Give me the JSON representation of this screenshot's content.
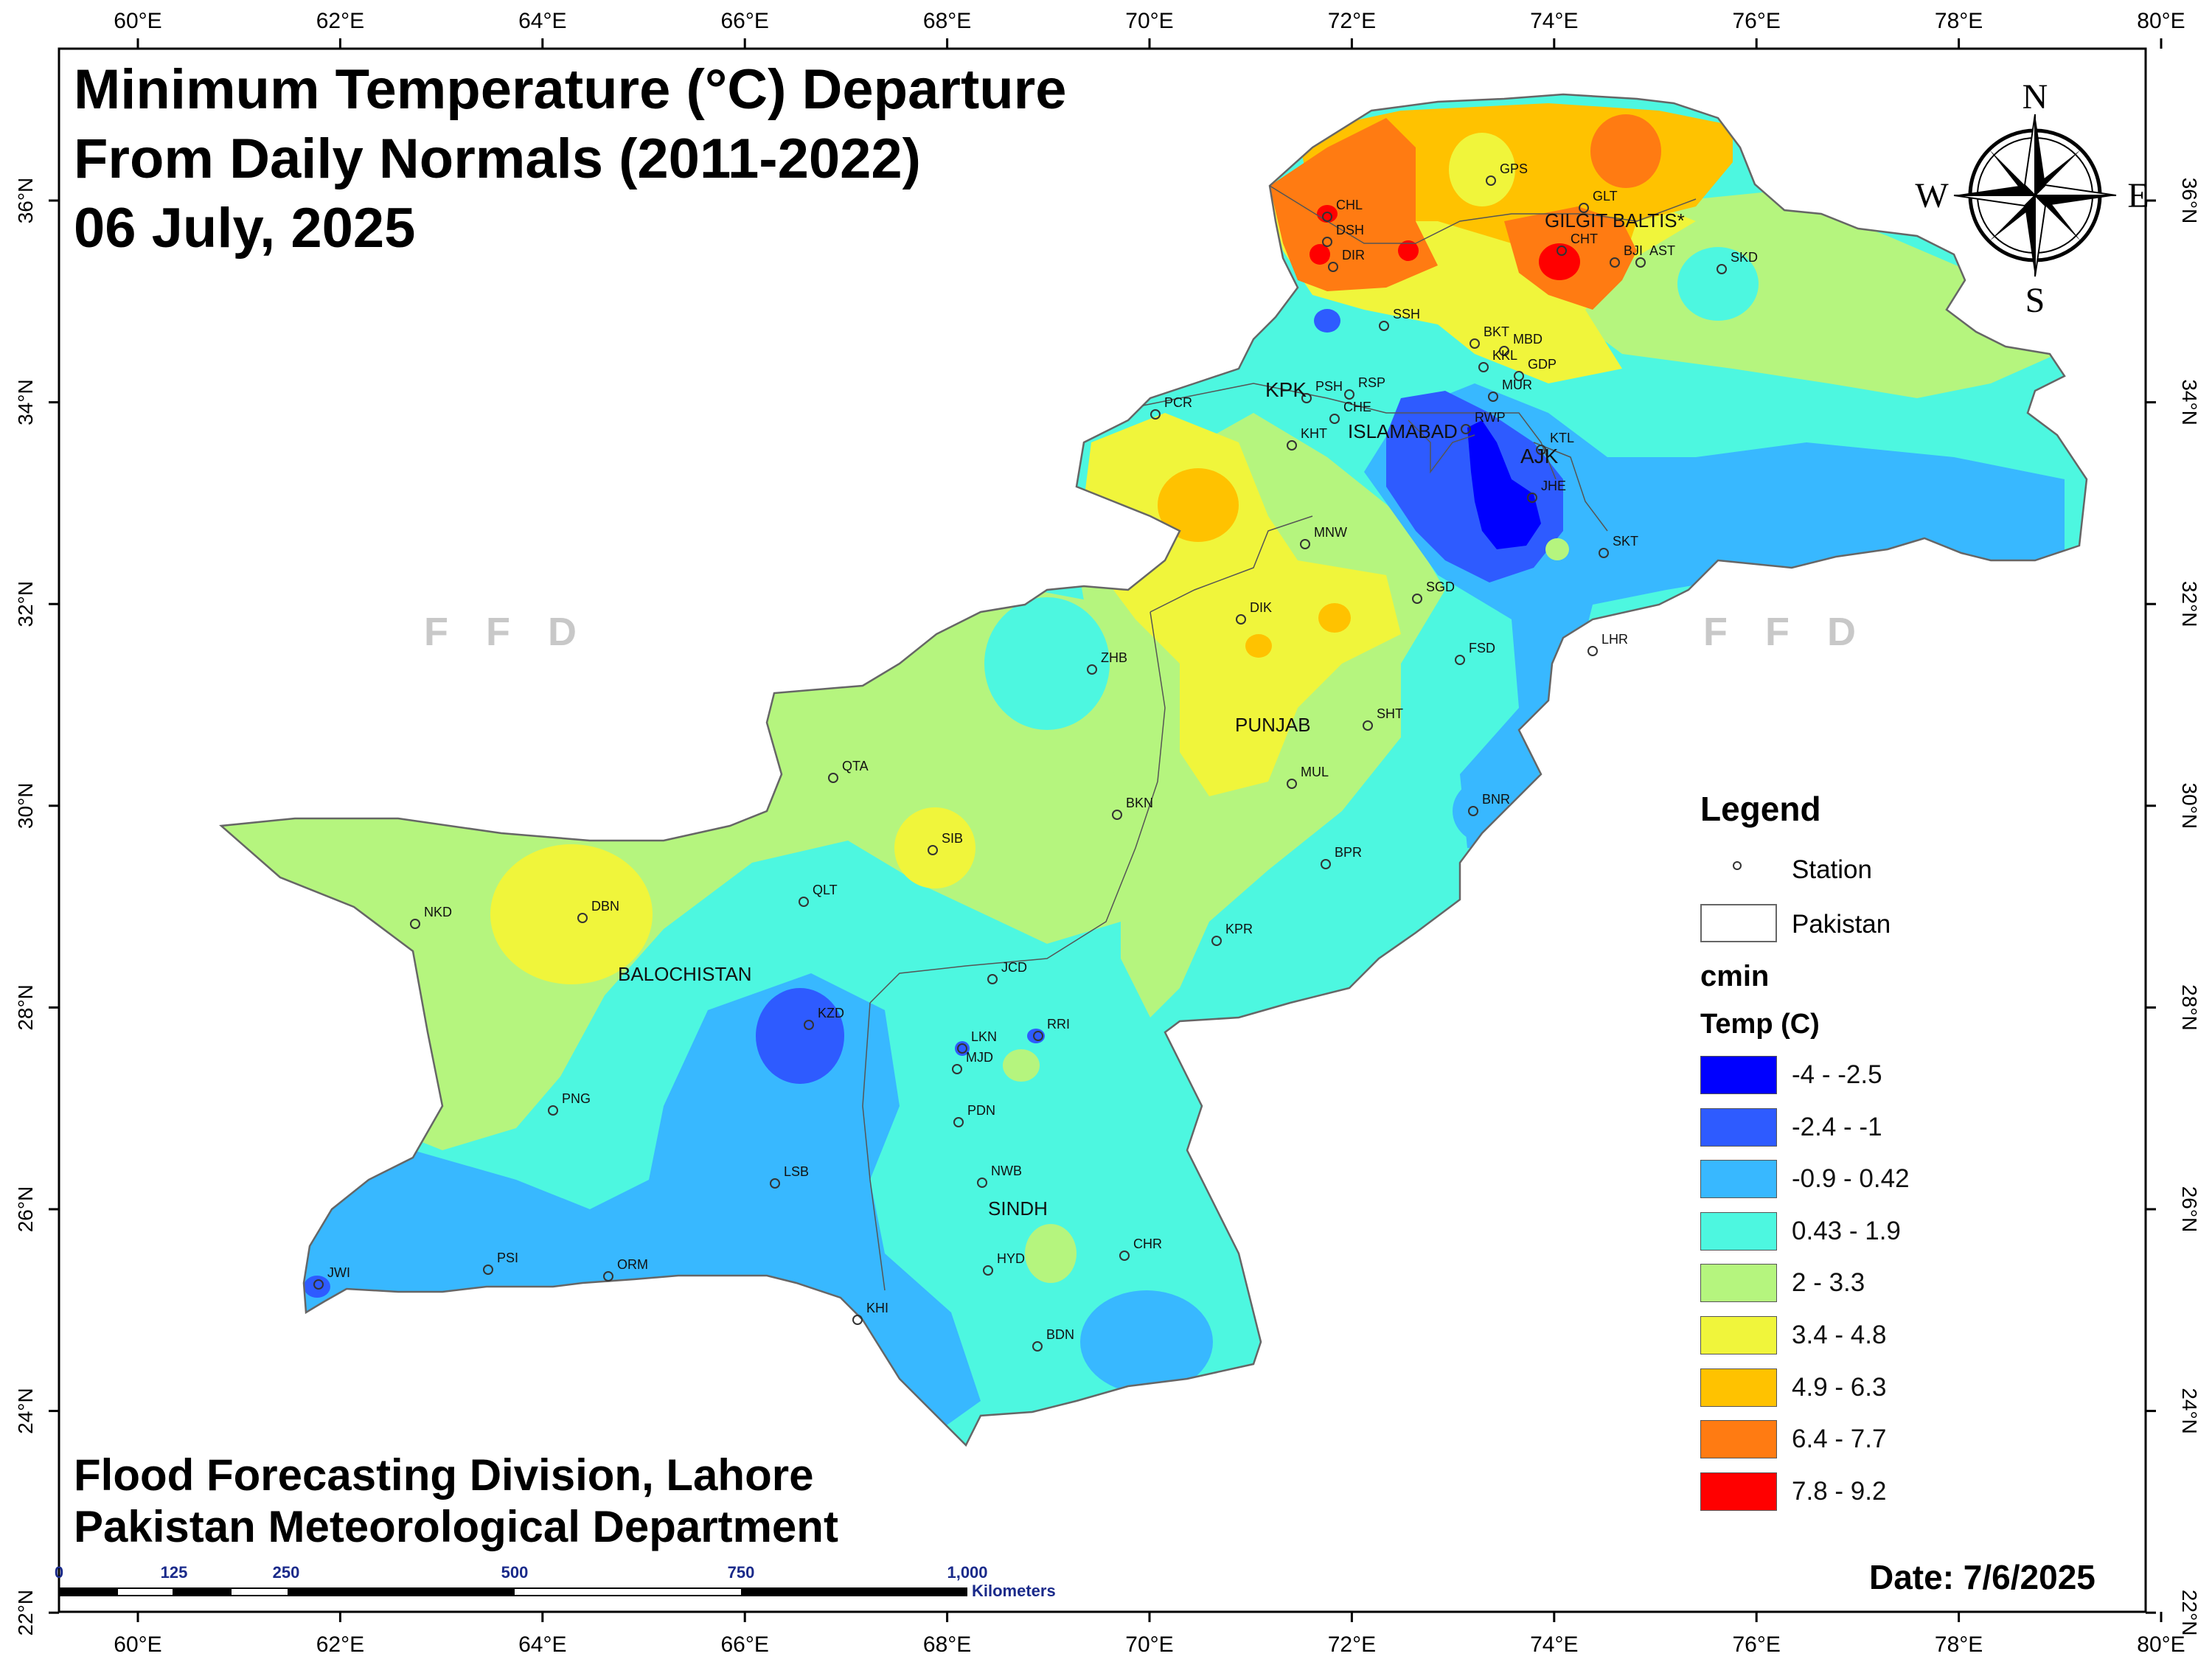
{
  "title": {
    "line1": "Minimum Temperature (°C) Departure",
    "line2": "From Daily Normals (2011-2022)",
    "line3": "06 July, 2025"
  },
  "footer": {
    "line1": "Flood Forecasting Division, Lahore",
    "line2": "Pakistan Meteorological Department"
  },
  "date": "Date: 7/6/2025",
  "watermark": "F F D",
  "axes": {
    "lon_ticks": [
      "60°E",
      "62°E",
      "64°E",
      "66°E",
      "68°E",
      "70°E",
      "72°E",
      "74°E",
      "76°E",
      "78°E",
      "80°E"
    ],
    "lat_ticks": [
      "36°N",
      "34°N",
      "32°N",
      "30°N",
      "28°N",
      "26°N",
      "24°N",
      "22°N"
    ]
  },
  "compass": {
    "n": "N",
    "s": "S",
    "e": "E",
    "w": "W"
  },
  "scale_bar": {
    "labels": [
      "0",
      "125",
      "250",
      "500",
      "750",
      "1,000"
    ],
    "unit": "Kilometers"
  },
  "legend": {
    "title": "Legend",
    "station_label": "Station",
    "boundary_label": "Pakistan",
    "field": "cmin",
    "subtitle": "Temp (C)",
    "classes": [
      {
        "label": "-4 - -2.5",
        "color": "#0000ff"
      },
      {
        "label": "-2.4 - -1",
        "color": "#2e5bff"
      },
      {
        "label": "-0.9 - 0.42",
        "color": "#38b8ff"
      },
      {
        "label": "0.43 - 1.9",
        "color": "#4df7e0"
      },
      {
        "label": "2 - 3.3",
        "color": "#b5f57e"
      },
      {
        "label": "3.4 - 4.8",
        "color": "#f0f53b"
      },
      {
        "label": "4.9 - 6.3",
        "color": "#ffc200"
      },
      {
        "label": "6.4 - 7.7",
        "color": "#ff7b12"
      },
      {
        "label": "7.8 - 9.2",
        "color": "#ff0000"
      }
    ]
  },
  "regions": [
    "GILGIT BALTIS*",
    "KPK",
    "ISLAMABAD",
    "AJK",
    "PUNJAB",
    "BALOCHISTAN",
    "SINDH"
  ],
  "stations": [
    "CHL",
    "DSH",
    "DIR",
    "GPS",
    "GLT",
    "CHT",
    "BJI",
    "AST",
    "SKD",
    "SSH",
    "BKT",
    "MBD",
    "KKL",
    "GDP",
    "MUR",
    "PSH",
    "RSP",
    "CHE",
    "PCR",
    "KHT",
    "RWP",
    "KTL",
    "JHE",
    "MNW",
    "SKT",
    "SGD",
    "DIK",
    "FSD",
    "LHR",
    "ZHB",
    "SHT",
    "QTA",
    "MUL",
    "BKN",
    "BNR",
    "SIB",
    "BPR",
    "QLT",
    "NKD",
    "DBN",
    "KPR",
    "JCD",
    "KZD",
    "RRI",
    "LKN",
    "MJD",
    "PNG",
    "PDN",
    "NWB",
    "LSB",
    "CHR",
    "HYD",
    "PSI",
    "ORM",
    "JWI",
    "KHI",
    "BDN"
  ]
}
